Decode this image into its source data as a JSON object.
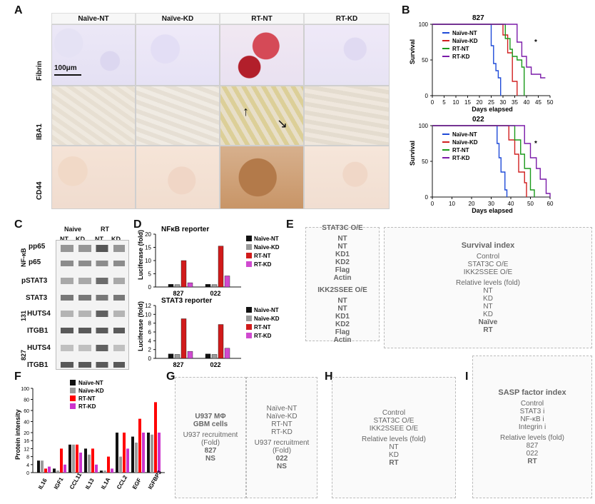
{
  "panels": {
    "A": {
      "label": "A",
      "cols": [
        "Naïve-NT",
        "Naïve-KD",
        "RT-NT",
        "RT-KD"
      ],
      "rows": [
        "Fibrin",
        "IBA1",
        "CD44"
      ],
      "scale_bar": "100μm"
    },
    "B": {
      "label": "B",
      "charts": [
        {
          "title": "827",
          "xlabel": "Days elapsed",
          "ylabel": "Survival",
          "x_ticks": [
            0,
            5,
            10,
            15,
            20,
            25,
            30,
            35,
            40,
            45,
            50
          ],
          "y_ticks": [
            0,
            50,
            100
          ],
          "series": [
            {
              "name": "Naïve-NT",
              "color": "#1f4bd8"
            },
            {
              "name": "Naïve-KD",
              "color": "#d12020"
            },
            {
              "name": "RT-NT",
              "color": "#1a9a1a"
            },
            {
              "name": "RT-KD",
              "color": "#7a1aa8"
            }
          ],
          "annotation": "*"
        },
        {
          "title": "022",
          "xlabel": "Days elapsed",
          "ylabel": "Survival",
          "x_ticks": [
            0,
            10,
            20,
            30,
            40,
            50,
            60
          ],
          "y_ticks": [
            0,
            50,
            100
          ],
          "series": [
            {
              "name": "Naïve-NT",
              "color": "#1f4bd8"
            },
            {
              "name": "Naïve-KD",
              "color": "#d12020"
            },
            {
              "name": "RT-NT",
              "color": "#1a9a1a"
            },
            {
              "name": "RT-KD",
              "color": "#7a1aa8"
            }
          ],
          "annotation": "*"
        }
      ]
    },
    "C": {
      "label": "C",
      "rows": [
        "pp65",
        "p65",
        "pSTAT3",
        "STAT3",
        "HUTS4",
        "ITGB1",
        "HUTS4",
        "ITGB1"
      ],
      "groups": [
        "Naive",
        "RT"
      ],
      "lanes": [
        "NT",
        "KD",
        "NT",
        "KD"
      ],
      "side_labels": [
        "NF-κB",
        "131",
        "827"
      ]
    },
    "D": {
      "label": "D",
      "charts": [
        {
          "title": "NFκB reporter",
          "ylabel": "Luciferase (fold)",
          "categories": [
            "827",
            "022"
          ],
          "series": [
            {
              "name": "Naïve-NT",
              "color": "#111",
              "values": [
                1.0,
                1.0
              ]
            },
            {
              "name": "Naïve-KD",
              "color": "#9a9a9a",
              "values": [
                0.9,
                0.9
              ]
            },
            {
              "name": "RT-NT",
              "color": "#d11b1b",
              "values": [
                10.0,
                15.5
              ]
            },
            {
              "name": "RT-KD",
              "color": "#d04ad0",
              "values": [
                1.6,
                4.2
              ]
            }
          ],
          "ylim": [
            0,
            20
          ],
          "y_ticks": [
            0,
            5,
            10,
            15,
            20
          ]
        },
        {
          "title": "STAT3 reporter",
          "ylabel": "Luciferase (fold)",
          "categories": [
            "827",
            "022"
          ],
          "series": [
            {
              "name": "Naïve-NT",
              "color": "#111",
              "values": [
                1.0,
                1.0
              ]
            },
            {
              "name": "Naïve-KD",
              "color": "#9a9a9a",
              "values": [
                0.9,
                0.9
              ]
            },
            {
              "name": "RT-NT",
              "color": "#d11b1b",
              "values": [
                9.0,
                7.7
              ]
            },
            {
              "name": "RT-KD",
              "color": "#d04ad0",
              "values": [
                1.6,
                2.3
              ]
            }
          ],
          "ylim": [
            0,
            12
          ],
          "y_ticks": [
            0,
            2,
            4,
            6,
            8,
            10,
            12
          ]
        }
      ]
    },
    "E": {
      "label": "E",
      "top_blot": {
        "title": "STAT3C O/E",
        "lanes": [
          "NT",
          "NT",
          "KD1",
          "KD2"
        ],
        "rows": [
          "Flag",
          "Actin"
        ]
      },
      "bottom_blot": {
        "title": "IKK2SSEE O/E",
        "lanes": [
          "NT",
          "NT",
          "KD1",
          "KD2"
        ],
        "rows": [
          "Flag",
          "Actin"
        ]
      },
      "chart_title": "Survival index",
      "legend": [
        "Control",
        "STAT3C O/E",
        "IKK2SSEE O/E"
      ],
      "ylabel": "Relative levels (fold)",
      "groups": [
        "NT",
        "KD",
        "NT",
        "KD"
      ],
      "group_labels": [
        "Naïve",
        "RT"
      ]
    },
    "F": {
      "label": "F",
      "ylabel": "Protein intensity",
      "categories": [
        "IL16",
        "IGF1",
        "CCL11",
        "IL13",
        "IL1A",
        "CCL2",
        "EGF",
        "IGFBP3"
      ],
      "legend": [
        {
          "name": "Naïve-NT",
          "color": "#111"
        },
        {
          "name": "Naïve-KD",
          "color": "#9a9a9a"
        },
        {
          "name": "RT-NT",
          "color": "#ff0000"
        },
        {
          "name": "RT-KD",
          "color": "#cc33cc"
        }
      ],
      "y_ticks": [
        0,
        4,
        8,
        12,
        16,
        20,
        40,
        60,
        80,
        100
      ],
      "values": [
        [
          6,
          6,
          2,
          3
        ],
        [
          2,
          1,
          12,
          4
        ],
        [
          14,
          14,
          14,
          10
        ],
        [
          12,
          9,
          12,
          4
        ],
        [
          1,
          1,
          8,
          2
        ],
        [
          20,
          8,
          20,
          12
        ],
        [
          18,
          15,
          45,
          20
        ],
        [
          20,
          19,
          75,
          20
        ]
      ]
    },
    "G": {
      "label": "G",
      "left": {
        "title": "827",
        "ylabel": "U937 recruitment (Fold)",
        "top_text": "U937 MΦ",
        "bottom_text": "GBM cells"
      },
      "right": {
        "title": "022",
        "ylabel": "U937 recruitment (Fold)"
      },
      "legend": [
        "Naïve-NT",
        "Naïve-KD",
        "RT-NT",
        "RT-KD"
      ],
      "ns": "NS"
    },
    "H": {
      "label": "H",
      "legend": [
        "Control",
        "STAT3C O/E",
        "IKK2SSEE O/E"
      ],
      "ylabel": "Relative levels (fold)",
      "groups": [
        "NT",
        "KD"
      ],
      "group_label": "RT"
    },
    "I": {
      "label": "I",
      "title": "SASP factor index",
      "legend": [
        "Control",
        "STAT3 i",
        "NF-κB i",
        "Integrin i"
      ],
      "ylabel": "Relative levels (fold)",
      "groups": [
        "827",
        "022"
      ],
      "group_label": "RT"
    }
  }
}
